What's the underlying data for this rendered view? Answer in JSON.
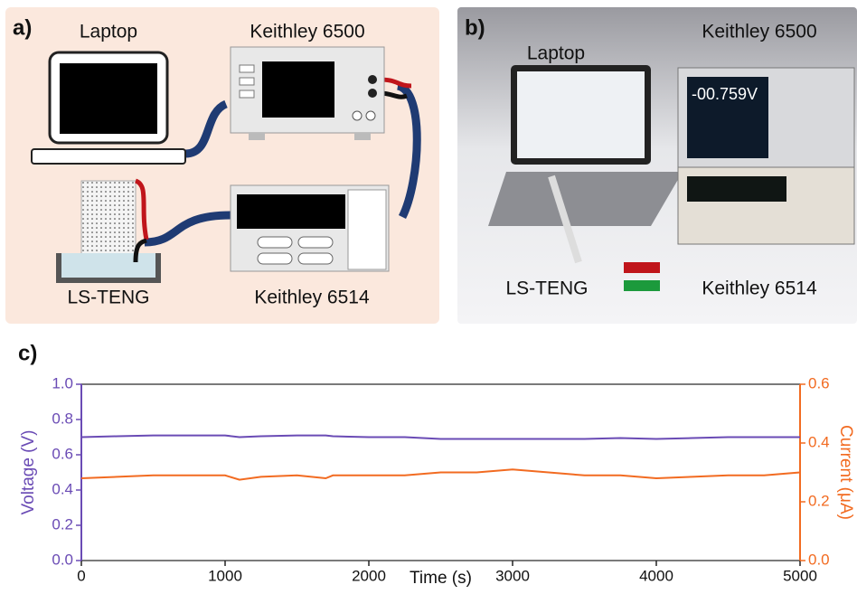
{
  "panels": {
    "a": {
      "label": "a)",
      "laptop": "Laptop",
      "meter_top": "Keithley 6500",
      "sensor": "LS-TENG",
      "meter_bottom": "Keithley 6514"
    },
    "b": {
      "label": "b)",
      "laptop": "Laptop",
      "meter_top": "Keithley 6500",
      "sensor": "LS-TENG",
      "meter_bottom": "Keithley 6514",
      "display": "-00.759V"
    },
    "c": {
      "label": "c)"
    }
  },
  "chart_data": {
    "type": "line",
    "x_label": "Time (s)",
    "y_label": "Voltage (V)",
    "y2_label": "Current (μA)",
    "x": [
      0,
      250,
      500,
      750,
      1000,
      1100,
      1250,
      1500,
      1700,
      1750,
      2000,
      2250,
      2500,
      2750,
      3000,
      3250,
      3500,
      3750,
      4000,
      4250,
      4500,
      4750,
      5000
    ],
    "series": [
      {
        "name": "Voltage (V)",
        "color": "#6a4bb5",
        "axis": "y",
        "values": [
          0.7,
          0.705,
          0.71,
          0.71,
          0.71,
          0.7,
          0.705,
          0.71,
          0.71,
          0.705,
          0.7,
          0.7,
          0.69,
          0.69,
          0.69,
          0.69,
          0.69,
          0.695,
          0.69,
          0.695,
          0.7,
          0.7,
          0.7
        ]
      },
      {
        "name": "Current (μA)",
        "color": "#f26b21",
        "axis": "y2",
        "values": [
          0.28,
          0.285,
          0.29,
          0.29,
          0.29,
          0.275,
          0.285,
          0.29,
          0.28,
          0.29,
          0.29,
          0.29,
          0.3,
          0.3,
          0.31,
          0.3,
          0.29,
          0.29,
          0.28,
          0.285,
          0.29,
          0.29,
          0.3
        ]
      }
    ],
    "xlim": [
      0,
      5000
    ],
    "xticks": [
      0,
      1000,
      2000,
      3000,
      4000,
      5000
    ],
    "ylim": [
      0,
      1
    ],
    "yticks": [
      {
        "value": 0,
        "label": "0.0"
      },
      0.2,
      0.4,
      0.6,
      0.8,
      {
        "value": 1,
        "label": "1.0"
      }
    ],
    "y2lim": [
      0,
      0.6
    ],
    "y2ticks": [
      {
        "value": 0,
        "label": "0.0"
      },
      0.2,
      0.4,
      0.6
    ]
  }
}
